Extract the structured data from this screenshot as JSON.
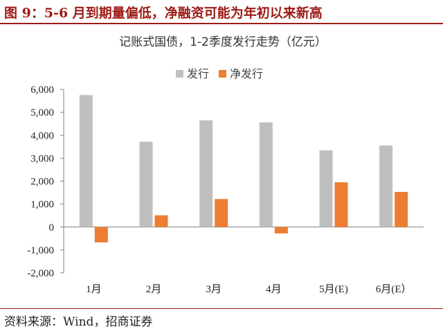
{
  "header": {
    "figure_title": "图 9：5-6 月到期量偏低，净融资可能为年初以来新高"
  },
  "footer": {
    "source": "资料来源：Wind，招商证券"
  },
  "colors": {
    "issuance": "#bfbfbf",
    "net_issuance": "#ed7d31",
    "title_accent": "#9c1a14"
  },
  "chart_data": {
    "type": "bar",
    "title": "记账式国债，1-2季度发行走势（亿元）",
    "categories": [
      "1月",
      "2月",
      "3月",
      "4月",
      "5月(E)",
      "6月(E）"
    ],
    "series": [
      {
        "name": "发行",
        "color": "#bfbfbf",
        "values": [
          5750,
          3720,
          4650,
          4560,
          3340,
          3550
        ]
      },
      {
        "name": "净发行",
        "color": "#ed7d31",
        "values": [
          -670,
          510,
          1220,
          -280,
          1950,
          1530
        ]
      }
    ],
    "ylim": [
      -2000,
      6000
    ],
    "yticks": [
      -2000,
      -1000,
      0,
      1000,
      2000,
      3000,
      4000,
      5000,
      6000
    ],
    "ytick_labels": [
      "-2,000",
      "-1,000",
      "0",
      "1,000",
      "2,000",
      "3,000",
      "4,000",
      "5,000",
      "6,000"
    ],
    "legend_position": "top-center",
    "grid": false
  }
}
